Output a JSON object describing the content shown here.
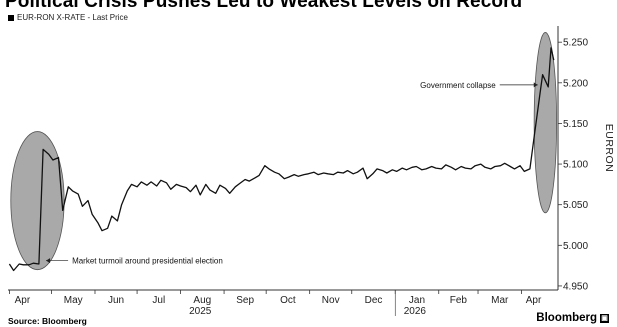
{
  "title": "Political Crisis Pushes Leu to Weakest Levels on Record",
  "legend_label": "EUR-RON X-RATE - Last Price",
  "source": "Source: Bloomberg",
  "brand": "Bloomberg",
  "brand_mark": "▣",
  "colors": {
    "line": "#111111",
    "ellipse_fill": "#9a9a9a",
    "ellipse_stroke": "#555555",
    "axis": "#333333"
  },
  "chart_data": {
    "type": "line",
    "series": [
      {
        "name": "EUR-RON X-RATE - Last Price",
        "x": [
          "2025-04-01",
          "2025-04-04",
          "2025-04-08",
          "2025-04-11",
          "2025-04-15",
          "2025-04-18",
          "2025-04-22",
          "2025-04-25",
          "2025-04-29",
          "2025-05-02",
          "2025-05-06",
          "2025-05-09",
          "2025-05-13",
          "2025-05-16",
          "2025-05-20",
          "2025-05-23",
          "2025-05-27",
          "2025-05-30",
          "2025-06-03",
          "2025-06-06",
          "2025-06-10",
          "2025-06-13",
          "2025-06-17",
          "2025-06-20",
          "2025-06-24",
          "2025-06-27",
          "2025-07-01",
          "2025-07-04",
          "2025-07-08",
          "2025-07-11",
          "2025-07-15",
          "2025-07-18",
          "2025-07-22",
          "2025-07-25",
          "2025-07-29",
          "2025-08-01",
          "2025-08-05",
          "2025-08-08",
          "2025-08-12",
          "2025-08-15",
          "2025-08-19",
          "2025-08-22",
          "2025-08-26",
          "2025-08-29",
          "2025-09-02",
          "2025-09-05",
          "2025-09-09",
          "2025-09-12",
          "2025-09-16",
          "2025-09-19",
          "2025-09-23",
          "2025-09-26",
          "2025-09-30",
          "2025-10-03",
          "2025-10-07",
          "2025-10-10",
          "2025-10-14",
          "2025-10-17",
          "2025-10-21",
          "2025-10-24",
          "2025-10-28",
          "2025-10-31",
          "2025-11-04",
          "2025-11-07",
          "2025-11-11",
          "2025-11-14",
          "2025-11-18",
          "2025-11-21",
          "2025-11-25",
          "2025-11-28",
          "2025-12-02",
          "2025-12-05",
          "2025-12-09",
          "2025-12-12",
          "2025-12-16",
          "2025-12-19",
          "2025-12-23",
          "2025-12-26",
          "2025-12-30",
          "2026-01-02",
          "2026-01-06",
          "2026-01-09",
          "2026-01-13",
          "2026-01-16",
          "2026-01-20",
          "2026-01-23",
          "2026-01-27",
          "2026-01-30",
          "2026-02-03",
          "2026-02-06",
          "2026-02-10",
          "2026-02-13",
          "2026-02-17",
          "2026-02-20",
          "2026-02-24",
          "2026-02-27",
          "2026-03-03",
          "2026-03-06",
          "2026-03-10",
          "2026-03-13",
          "2026-03-17",
          "2026-03-20",
          "2026-03-24",
          "2026-03-27",
          "2026-03-31",
          "2026-04-03",
          "2026-04-07",
          "2026-04-10",
          "2026-04-14",
          "2026-04-16",
          "2026-04-20",
          "2026-04-22",
          "2026-04-24"
        ],
        "values": [
          4.977,
          4.969,
          4.977,
          4.976,
          4.976,
          4.978,
          4.977,
          5.118,
          5.112,
          5.105,
          5.108,
          5.043,
          5.072,
          5.067,
          5.063,
          5.048,
          5.055,
          5.038,
          5.028,
          5.018,
          5.021,
          5.036,
          5.03,
          5.05,
          5.067,
          5.075,
          5.072,
          5.078,
          5.074,
          5.078,
          5.073,
          5.08,
          5.077,
          5.069,
          5.075,
          5.073,
          5.071,
          5.066,
          5.074,
          5.062,
          5.075,
          5.068,
          5.064,
          5.074,
          5.07,
          5.064,
          5.072,
          5.076,
          5.081,
          5.079,
          5.083,
          5.086,
          5.098,
          5.094,
          5.09,
          5.088,
          5.082,
          5.084,
          5.087,
          5.085,
          5.087,
          5.088,
          5.09,
          5.087,
          5.089,
          5.088,
          5.087,
          5.09,
          5.089,
          5.092,
          5.088,
          5.09,
          5.095,
          5.082,
          5.088,
          5.094,
          5.092,
          5.089,
          5.093,
          5.091,
          5.095,
          5.093,
          5.096,
          5.097,
          5.093,
          5.094,
          5.097,
          5.095,
          5.094,
          5.099,
          5.096,
          5.093,
          5.097,
          5.095,
          5.094,
          5.098,
          5.1,
          5.096,
          5.094,
          5.097,
          5.098,
          5.101,
          5.097,
          5.094,
          5.098,
          5.091,
          5.094,
          5.133,
          5.185,
          5.21,
          5.195,
          5.243,
          5.228
        ]
      }
    ],
    "x_tick_labels": [
      "Apr",
      "May",
      "Jun",
      "Jul",
      "Aug",
      "Sep",
      "Oct",
      "Nov",
      "Dec",
      "Jan",
      "Feb",
      "Mar",
      "Apr"
    ],
    "x_tick_dates": [
      "2025-04-01",
      "2025-05-01",
      "2025-06-01",
      "2025-07-01",
      "2025-08-01",
      "2025-09-01",
      "2025-10-01",
      "2025-11-01",
      "2025-12-01",
      "2026-01-01",
      "2026-02-01",
      "2026-03-01",
      "2026-04-01"
    ],
    "year_labels": [
      {
        "label": "2025",
        "at": "2025-08-15"
      },
      {
        "label": "2026",
        "at": "2026-01-15"
      }
    ],
    "xlim": [
      "2025-03-31",
      "2026-04-27"
    ],
    "y_ticks": [
      4.95,
      5.0,
      5.05,
      5.1,
      5.15,
      5.2,
      5.25
    ],
    "y_tick_labels": [
      "4.950",
      "5.000",
      "5.050",
      "5.100",
      "5.150",
      "5.200",
      "5.250"
    ],
    "ylim": [
      4.945,
      5.265
    ],
    "ylabel": "EURRON",
    "y_axis_side": "right",
    "grid": false,
    "legend_position": "top-left",
    "annotations": [
      {
        "text": "Market turmoil around presidential election",
        "at_x": "2025-04-25",
        "at_y": 4.98
      },
      {
        "text": "Government collapse",
        "at_x": "2026-04-14",
        "at_y": 5.195
      }
    ],
    "highlight_ellipses": [
      {
        "x_range": [
          "2025-04-02",
          "2025-05-10"
        ],
        "y_range": [
          4.97,
          5.14
        ]
      },
      {
        "x_range": [
          "2026-04-10",
          "2026-04-26"
        ],
        "y_range": [
          5.04,
          5.262
        ]
      }
    ]
  }
}
